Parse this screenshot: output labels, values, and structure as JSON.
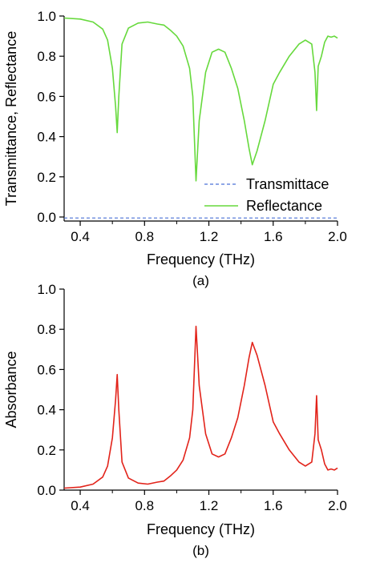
{
  "chart_data": [
    {
      "type": "line",
      "panel_label": "(a)",
      "xlabel": "Frequency (THz)",
      "ylabel": "Transmittance, Reflectance",
      "xlim": [
        0.3,
        2.0
      ],
      "ylim": [
        -0.02,
        1.0
      ],
      "xticks": [
        "0.4",
        "0.8",
        "1.2",
        "1.6",
        "2.0"
      ],
      "xtick_values": [
        0.4,
        0.8,
        1.2,
        1.6,
        2.0
      ],
      "yticks": [
        "0.0",
        "0.2",
        "0.4",
        "0.6",
        "0.8",
        "1.0"
      ],
      "ytick_values": [
        0.0,
        0.2,
        0.4,
        0.6,
        0.8,
        1.0
      ],
      "legend_position": "bottom-right",
      "series": [
        {
          "name": "Transmittace",
          "color": "#4a72d6",
          "style": "dashed",
          "x": [
            0.3,
            2.0
          ],
          "y": [
            -0.005,
            -0.005
          ]
        },
        {
          "name": "Reflectance",
          "color": "#66d93c",
          "style": "solid",
          "x": [
            0.3,
            0.4,
            0.48,
            0.54,
            0.57,
            0.6,
            0.62,
            0.63,
            0.64,
            0.66,
            0.7,
            0.76,
            0.82,
            0.88,
            0.92,
            0.96,
            1.0,
            1.04,
            1.08,
            1.1,
            1.12,
            1.14,
            1.18,
            1.22,
            1.26,
            1.3,
            1.34,
            1.38,
            1.42,
            1.45,
            1.47,
            1.5,
            1.55,
            1.6,
            1.64,
            1.7,
            1.76,
            1.8,
            1.82,
            1.84,
            1.86,
            1.87,
            1.88,
            1.9,
            1.92,
            1.94,
            1.96,
            1.98,
            2.0
          ],
          "y": [
            0.99,
            0.985,
            0.97,
            0.935,
            0.88,
            0.74,
            0.55,
            0.42,
            0.6,
            0.86,
            0.94,
            0.965,
            0.97,
            0.96,
            0.955,
            0.93,
            0.9,
            0.85,
            0.74,
            0.6,
            0.18,
            0.48,
            0.72,
            0.82,
            0.835,
            0.82,
            0.74,
            0.64,
            0.48,
            0.34,
            0.26,
            0.33,
            0.48,
            0.66,
            0.72,
            0.8,
            0.86,
            0.88,
            0.87,
            0.86,
            0.72,
            0.53,
            0.75,
            0.8,
            0.87,
            0.9,
            0.895,
            0.9,
            0.89
          ]
        }
      ]
    },
    {
      "type": "line",
      "panel_label": "(b)",
      "xlabel": "Frequency (THz)",
      "ylabel": "Absorbance",
      "xlim": [
        0.3,
        2.0
      ],
      "ylim": [
        0.0,
        1.0
      ],
      "xticks": [
        "0.4",
        "0.8",
        "1.2",
        "1.6",
        "2.0"
      ],
      "xtick_values": [
        0.4,
        0.8,
        1.2,
        1.6,
        2.0
      ],
      "yticks": [
        "0.0",
        "0.2",
        "0.4",
        "0.6",
        "0.8",
        "1.0"
      ],
      "ytick_values": [
        0.0,
        0.2,
        0.4,
        0.6,
        0.8,
        1.0
      ],
      "series": [
        {
          "name": "",
          "color": "#e2231a",
          "style": "solid",
          "x": [
            0.3,
            0.4,
            0.48,
            0.54,
            0.57,
            0.6,
            0.62,
            0.63,
            0.64,
            0.66,
            0.7,
            0.76,
            0.82,
            0.88,
            0.92,
            0.96,
            1.0,
            1.04,
            1.08,
            1.1,
            1.12,
            1.14,
            1.18,
            1.22,
            1.26,
            1.3,
            1.34,
            1.38,
            1.42,
            1.45,
            1.47,
            1.5,
            1.55,
            1.6,
            1.64,
            1.7,
            1.76,
            1.8,
            1.82,
            1.84,
            1.86,
            1.87,
            1.88,
            1.9,
            1.92,
            1.94,
            1.96,
            1.98,
            2.0
          ],
          "y": [
            0.01,
            0.015,
            0.03,
            0.065,
            0.12,
            0.26,
            0.45,
            0.575,
            0.4,
            0.14,
            0.06,
            0.035,
            0.03,
            0.04,
            0.045,
            0.07,
            0.1,
            0.15,
            0.26,
            0.4,
            0.815,
            0.52,
            0.28,
            0.18,
            0.165,
            0.18,
            0.26,
            0.36,
            0.52,
            0.66,
            0.735,
            0.67,
            0.52,
            0.34,
            0.28,
            0.2,
            0.14,
            0.12,
            0.13,
            0.14,
            0.28,
            0.47,
            0.25,
            0.2,
            0.13,
            0.1,
            0.105,
            0.1,
            0.11
          ]
        }
      ]
    }
  ]
}
